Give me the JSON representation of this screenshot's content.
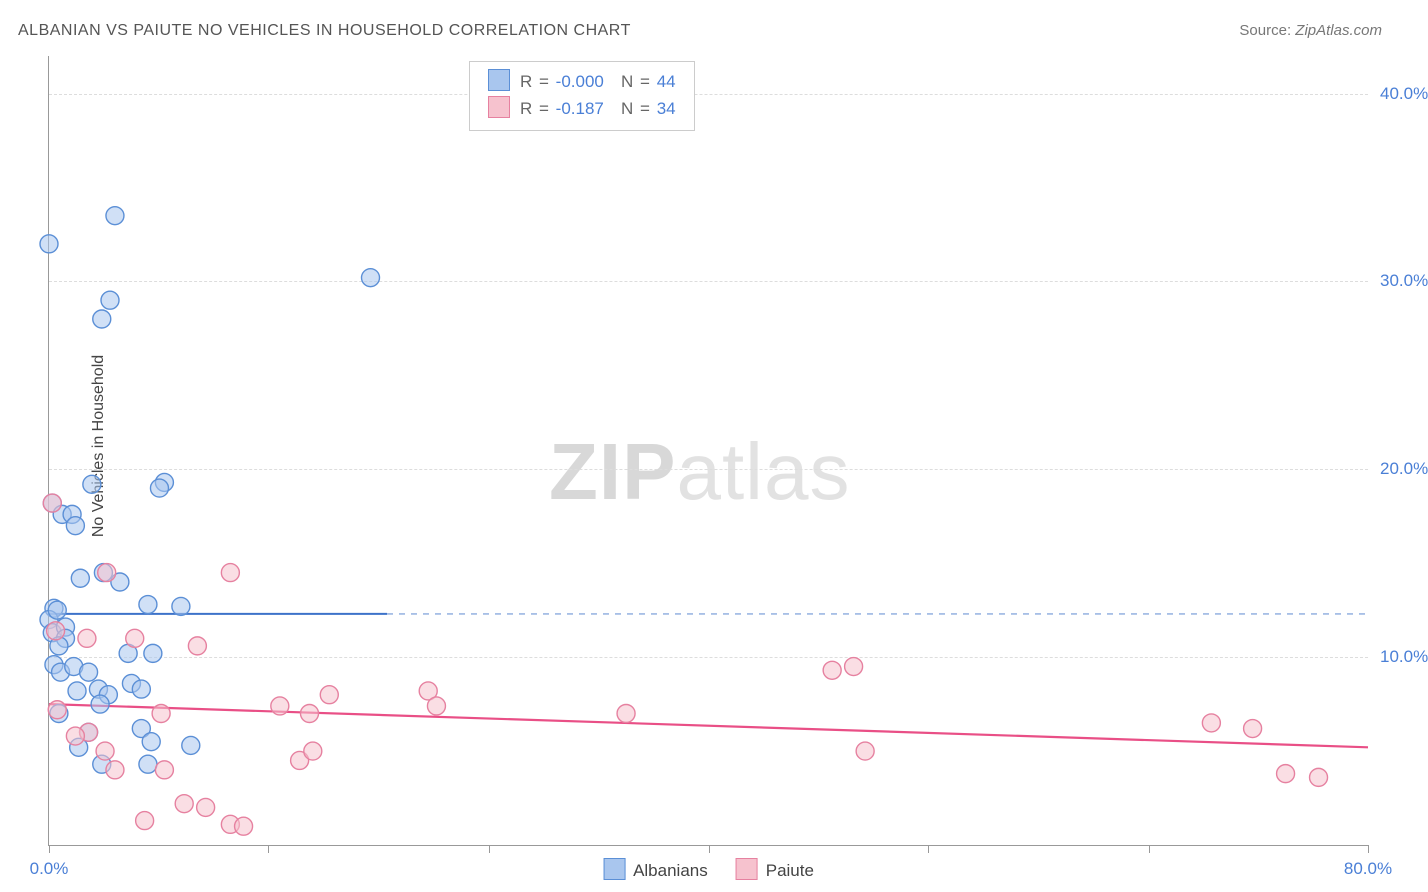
{
  "title": "ALBANIAN VS PAIUTE NO VEHICLES IN HOUSEHOLD CORRELATION CHART",
  "source_label": "Source:",
  "source_value": "ZipAtlas.com",
  "ylabel": "No Vehicles in Household",
  "watermark_bold": "ZIP",
  "watermark_rest": "atlas",
  "chart": {
    "type": "scatter",
    "x_range": [
      0,
      80
    ],
    "y_range": [
      0,
      42
    ],
    "background_color": "#ffffff",
    "grid_color": "#dddddd",
    "axis_color": "#999999",
    "ytick_values": [
      10,
      20,
      30,
      40
    ],
    "ytick_labels": [
      "10.0%",
      "20.0%",
      "30.0%",
      "40.0%"
    ],
    "ytick_color": "#4a7fd6",
    "xtick_values": [
      0,
      13.3,
      26.7,
      40,
      53.3,
      66.7,
      80
    ],
    "xtick_labels": {
      "0": "0.0%",
      "80": "80.0%"
    },
    "xtick_color": "#4a7fd6",
    "marker_radius": 9,
    "marker_opacity": 0.55,
    "marker_stroke_width": 1.4,
    "series": [
      {
        "name": "Albanians",
        "fill": "#a9c6ee",
        "stroke": "#5b8fd6",
        "r_value": "-0.000",
        "n_value": "44",
        "trend": {
          "x1": 0,
          "y1": 12.3,
          "x2": 20.5,
          "y2": 12.3,
          "dash_x2": 80,
          "color": "#3d72c9",
          "width": 2
        },
        "points": [
          [
            0.2,
            18.2
          ],
          [
            0.0,
            32.0
          ],
          [
            4.0,
            33.5
          ],
          [
            3.7,
            29.0
          ],
          [
            3.2,
            28.0
          ],
          [
            2.6,
            19.2
          ],
          [
            7.0,
            19.3
          ],
          [
            6.7,
            19.0
          ],
          [
            0.8,
            17.6
          ],
          [
            1.4,
            17.6
          ],
          [
            1.6,
            17.0
          ],
          [
            1.9,
            14.2
          ],
          [
            3.3,
            14.5
          ],
          [
            4.3,
            14.0
          ],
          [
            0.3,
            12.6
          ],
          [
            0.0,
            12.0
          ],
          [
            0.2,
            11.3
          ],
          [
            0.5,
            12.5
          ],
          [
            1.0,
            11.6
          ],
          [
            1.0,
            11.0
          ],
          [
            0.6,
            10.6
          ],
          [
            0.3,
            9.6
          ],
          [
            0.7,
            9.2
          ],
          [
            1.5,
            9.5
          ],
          [
            2.4,
            9.2
          ],
          [
            4.8,
            10.2
          ],
          [
            6.3,
            10.2
          ],
          [
            6.0,
            12.8
          ],
          [
            8.0,
            12.7
          ],
          [
            1.7,
            8.2
          ],
          [
            3.0,
            8.3
          ],
          [
            3.6,
            8.0
          ],
          [
            5.0,
            8.6
          ],
          [
            5.6,
            8.3
          ],
          [
            3.1,
            7.5
          ],
          [
            0.6,
            7.0
          ],
          [
            2.4,
            6.0
          ],
          [
            5.6,
            6.2
          ],
          [
            1.8,
            5.2
          ],
          [
            3.2,
            4.3
          ],
          [
            6.0,
            4.3
          ],
          [
            6.2,
            5.5
          ],
          [
            8.6,
            5.3
          ],
          [
            19.5,
            30.2
          ]
        ]
      },
      {
        "name": "Paiute",
        "fill": "#f6c2ce",
        "stroke": "#e681a0",
        "r_value": "-0.187",
        "n_value": "34",
        "trend": {
          "x1": 0,
          "y1": 7.5,
          "x2": 80,
          "y2": 5.2,
          "color": "#e94f86",
          "width": 2.2
        },
        "points": [
          [
            0.2,
            18.2
          ],
          [
            11.0,
            14.5
          ],
          [
            3.5,
            14.5
          ],
          [
            0.4,
            11.4
          ],
          [
            2.3,
            11.0
          ],
          [
            5.2,
            11.0
          ],
          [
            9.0,
            10.6
          ],
          [
            6.8,
            7.0
          ],
          [
            0.5,
            7.2
          ],
          [
            2.4,
            6.0
          ],
          [
            1.6,
            5.8
          ],
          [
            3.4,
            5.0
          ],
          [
            4.0,
            4.0
          ],
          [
            7.0,
            4.0
          ],
          [
            8.2,
            2.2
          ],
          [
            9.5,
            2.0
          ],
          [
            11.0,
            1.1
          ],
          [
            11.8,
            1.0
          ],
          [
            5.8,
            1.3
          ],
          [
            14.0,
            7.4
          ],
          [
            15.8,
            7.0
          ],
          [
            15.2,
            4.5
          ],
          [
            16.0,
            5.0
          ],
          [
            17.0,
            8.0
          ],
          [
            23.0,
            8.2
          ],
          [
            23.5,
            7.4
          ],
          [
            35.0,
            7.0
          ],
          [
            47.5,
            9.3
          ],
          [
            48.8,
            9.5
          ],
          [
            49.5,
            5.0
          ],
          [
            70.5,
            6.5
          ],
          [
            73.0,
            6.2
          ],
          [
            75.0,
            3.8
          ],
          [
            77.0,
            3.6
          ]
        ]
      }
    ],
    "legend_top": {
      "r_label": "R =",
      "n_label": "N =",
      "text_color": "#666666",
      "value_color": "#4a7fd6"
    },
    "legend_bottom": {
      "items": [
        "Albanians",
        "Paiute"
      ]
    }
  }
}
